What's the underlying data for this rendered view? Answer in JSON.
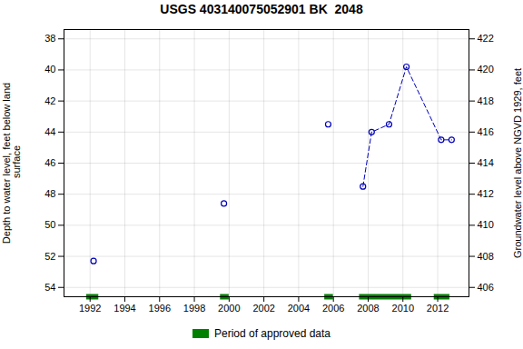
{
  "chart_data": {
    "type": "scatter",
    "title": "USGS 403140075052901 BK  2048",
    "ylabel": "Depth to water level, feet below land\n surface",
    "y2label": "Groundwater level above NGVD 1929, feet",
    "series": [
      {
        "x": [
          1992.2,
          1999.7,
          2005.7
        ],
        "values": [
          52.3,
          48.6,
          43.5
        ],
        "color": "#0000bb",
        "marker": "open_circle"
      },
      {
        "x": [
          2007.7,
          2008.2,
          2009.2,
          2010.2,
          2012.2,
          2012.8
        ],
        "values": [
          47.5,
          44.0,
          43.5,
          39.8,
          44.5,
          44.5
        ],
        "color": "#0000bb",
        "marker": "open_circle",
        "line_style": "dashed"
      }
    ],
    "approved_periods": {
      "name": "Period of approved data",
      "color": "#008000",
      "ranges": [
        [
          1991.8,
          1992.5
        ],
        [
          1999.5,
          2000.0
        ],
        [
          2005.5,
          2006.0
        ],
        [
          2007.5,
          2010.5
        ],
        [
          2011.8,
          2012.7
        ]
      ]
    },
    "xlim": [
      1990.5,
      2013.8
    ],
    "xticks": [
      1992,
      1994,
      1996,
      1998,
      2000,
      2002,
      2004,
      2006,
      2008,
      2010,
      2012
    ],
    "ylim": [
      54.6,
      37.4
    ],
    "yticks": [
      38,
      40,
      42,
      44,
      46,
      48,
      50,
      52,
      54
    ],
    "y2lim": [
      405.4,
      422.6
    ],
    "y2ticks": [
      406,
      408,
      410,
      412,
      414,
      416,
      418,
      420,
      422
    ],
    "grid": true,
    "legend": "bottom"
  }
}
